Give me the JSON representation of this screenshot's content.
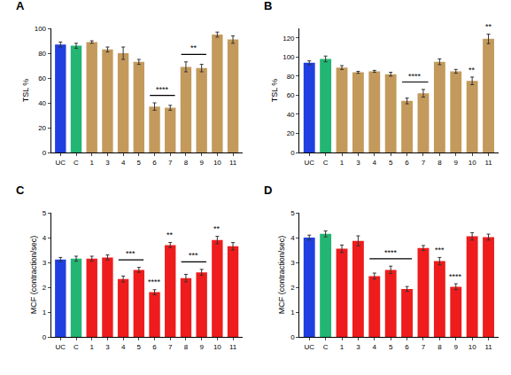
{
  "chart_data": [
    {
      "type": "bar",
      "panel": "A",
      "y_label": "TSL %",
      "categories": [
        "UC",
        "C",
        "1",
        "3",
        "4",
        "5",
        "6",
        "7",
        "8",
        "9",
        "10",
        "11"
      ],
      "values": [
        87,
        86,
        89,
        83,
        80,
        73,
        37,
        36,
        69,
        68,
        95,
        91
      ],
      "errors": [
        2,
        2,
        1,
        2,
        5,
        2,
        3,
        2,
        4,
        3,
        2,
        3
      ],
      "colors": [
        "#1f3fe0",
        "#22b573",
        "#c39a5c",
        "#c39a5c",
        "#c39a5c",
        "#c39a5c",
        "#c39a5c",
        "#c39a5c",
        "#c39a5c",
        "#c39a5c",
        "#c39a5c",
        "#c39a5c"
      ],
      "ylim": [
        0,
        100
      ],
      "yticks": [
        0,
        20,
        40,
        60,
        80,
        100
      ],
      "annotations": [
        {
          "text": "****",
          "from": "6",
          "to": "7"
        },
        {
          "text": "**",
          "from": "8",
          "to": "9"
        }
      ]
    },
    {
      "type": "bar",
      "panel": "B",
      "y_label": "TSL %",
      "categories": [
        "UC",
        "C",
        "1",
        "3",
        "4",
        "5",
        "6",
        "7",
        "8",
        "9",
        "10",
        "11"
      ],
      "values": [
        94,
        98,
        89,
        84,
        85,
        82,
        54,
        62,
        95,
        85,
        75,
        119
      ],
      "errors": [
        2,
        3,
        2,
        1,
        1,
        2,
        3,
        4,
        3,
        2,
        4,
        5
      ],
      "colors": [
        "#1f3fe0",
        "#22b573",
        "#c39a5c",
        "#c39a5c",
        "#c39a5c",
        "#c39a5c",
        "#c39a5c",
        "#c39a5c",
        "#c39a5c",
        "#c39a5c",
        "#c39a5c",
        "#c39a5c"
      ],
      "ylim": [
        0,
        130
      ],
      "yticks": [
        0,
        20,
        40,
        60,
        80,
        100,
        120
      ],
      "annotations": [
        {
          "text": "****",
          "from": "6",
          "to": "7"
        },
        {
          "text": "**",
          "from": "10",
          "to": "10"
        },
        {
          "text": "**",
          "from": "11",
          "to": "11"
        }
      ]
    },
    {
      "type": "bar",
      "panel": "C",
      "y_label": "MCF (contraction/sec)",
      "categories": [
        "UC",
        "C",
        "1",
        "3",
        "4",
        "5",
        "6",
        "7",
        "8",
        "9",
        "10",
        "11"
      ],
      "values": [
        3.12,
        3.15,
        3.15,
        3.2,
        2.33,
        2.7,
        1.8,
        3.7,
        2.37,
        2.6,
        3.9,
        3.65
      ],
      "errors": [
        0.08,
        0.1,
        0.1,
        0.1,
        0.12,
        0.1,
        0.1,
        0.1,
        0.15,
        0.12,
        0.15,
        0.15
      ],
      "colors": [
        "#1f3fe0",
        "#22b573",
        "#ee1c1c",
        "#ee1c1c",
        "#ee1c1c",
        "#ee1c1c",
        "#ee1c1c",
        "#ee1c1c",
        "#ee1c1c",
        "#ee1c1c",
        "#ee1c1c",
        "#ee1c1c"
      ],
      "ylim": [
        0,
        5
      ],
      "yticks": [
        0,
        1,
        2,
        3,
        4,
        5
      ],
      "annotations": [
        {
          "text": "***",
          "from": "4",
          "to": "5"
        },
        {
          "text": "****",
          "from": "6",
          "to": "6"
        },
        {
          "text": "**",
          "from": "7",
          "to": "7"
        },
        {
          "text": "***",
          "from": "8",
          "to": "9"
        },
        {
          "text": "**",
          "from": "10",
          "to": "10"
        }
      ]
    },
    {
      "type": "bar",
      "panel": "D",
      "y_label": "MCF (contraction/sec)",
      "categories": [
        "UC",
        "C",
        "1",
        "3",
        "4",
        "5",
        "6",
        "7",
        "8",
        "9",
        "10",
        "11"
      ],
      "values": [
        4.0,
        4.15,
        3.55,
        3.87,
        2.45,
        2.7,
        1.93,
        3.58,
        3.05,
        2.02,
        4.05,
        4.02
      ],
      "errors": [
        0.1,
        0.12,
        0.15,
        0.2,
        0.12,
        0.15,
        0.1,
        0.1,
        0.15,
        0.12,
        0.15,
        0.12
      ],
      "colors": [
        "#1f3fe0",
        "#22b573",
        "#ee1c1c",
        "#ee1c1c",
        "#ee1c1c",
        "#ee1c1c",
        "#ee1c1c",
        "#ee1c1c",
        "#ee1c1c",
        "#ee1c1c",
        "#ee1c1c",
        "#ee1c1c"
      ],
      "ylim": [
        0,
        5
      ],
      "yticks": [
        0,
        1,
        2,
        3,
        4,
        5
      ],
      "annotations": [
        {
          "text": "****",
          "from": "4",
          "to": "6"
        },
        {
          "text": "***",
          "from": "8",
          "to": "8"
        },
        {
          "text": "****",
          "from": "9",
          "to": "9"
        }
      ]
    }
  ]
}
